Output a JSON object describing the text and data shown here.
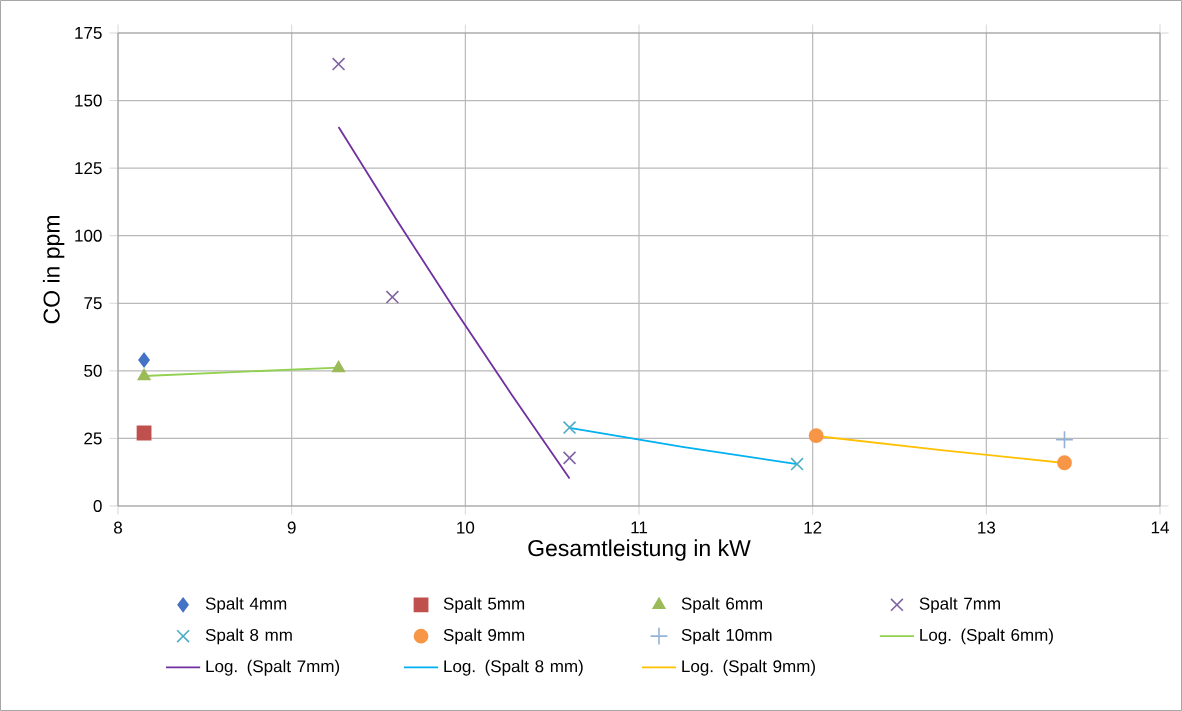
{
  "chart_data": {
    "type": "scatter",
    "xlabel": "Gesamtleistung in kW",
    "ylabel": "CO in ppm",
    "xlim": [
      8,
      14
    ],
    "xticks": [
      8,
      9,
      10,
      11,
      12,
      13,
      14
    ],
    "ylim": [
      0,
      175
    ],
    "yticks": [
      0,
      25,
      50,
      75,
      100,
      125,
      150,
      175
    ],
    "grid": true,
    "legend": "bottom",
    "series": [
      {
        "name": "Spalt 4mm",
        "color": "#4472c4",
        "marker": "diamond",
        "x": [
          8.15
        ],
        "values": [
          54
        ]
      },
      {
        "name": "Spalt 5mm",
        "color": "#c0504d",
        "marker": "square",
        "x": [
          8.15
        ],
        "values": [
          27
        ]
      },
      {
        "name": "Spalt 6mm",
        "color": "#9bbb59",
        "marker": "triangle",
        "x": [
          8.15,
          9.27
        ],
        "values": [
          48,
          51
        ]
      },
      {
        "name": "Spalt 7mm",
        "color": "#8064a2",
        "marker": "cross",
        "x": [
          9.27,
          9.58,
          10.6
        ],
        "values": [
          163.5,
          77.3,
          17.8
        ]
      },
      {
        "name": "Spalt 8 mm",
        "color": "#4bacc6",
        "marker": "cross",
        "x": [
          10.6,
          11.91
        ],
        "values": [
          29,
          15.5
        ]
      },
      {
        "name": "Spalt 9mm",
        "color": "#f79646",
        "marker": "circle",
        "x": [
          12.02,
          13.45
        ],
        "values": [
          26,
          16
        ]
      },
      {
        "name": "Spalt 10mm",
        "color": "#95b3d7",
        "marker": "plus",
        "x": [
          13.45
        ],
        "values": [
          24.5
        ]
      },
      {
        "name": "Log. (Spalt 6mm)",
        "type": "line",
        "color": "#92d050",
        "marker": "none",
        "x": [
          8.15,
          9.27
        ],
        "values": [
          48.1,
          51.2
        ]
      },
      {
        "name": "Log. (Spalt 7mm)",
        "type": "line",
        "color": "#7030a0",
        "marker": "none",
        "x": [
          9.27,
          9.6,
          9.93,
          10.27,
          10.6
        ],
        "values": [
          140.2,
          106.3,
          73.5,
          40.9,
          10.2
        ]
      },
      {
        "name": "Log. (Spalt 8 mm)",
        "type": "line",
        "color": "#00b0f0",
        "marker": "none",
        "x": [
          10.6,
          11.25,
          11.91
        ],
        "values": [
          28.9,
          21.9,
          15.5
        ]
      },
      {
        "name": "Log. (Spalt 9mm)",
        "type": "line",
        "color": "#ffc000",
        "marker": "none",
        "x": [
          12.02,
          12.74,
          13.45
        ],
        "values": [
          25.9,
          20.7,
          15.9
        ]
      }
    ]
  }
}
